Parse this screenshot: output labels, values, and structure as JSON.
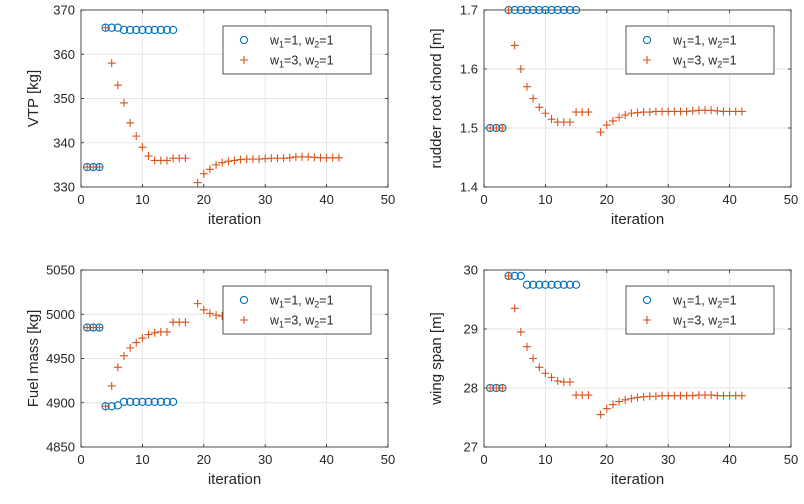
{
  "colors": {
    "series1": "#0072BD",
    "series2": "#D95319",
    "axis": "#262626",
    "grid": "#E6E6E6",
    "legend_border": "#262626"
  },
  "chart_data": [
    {
      "type": "scatter",
      "xlabel": "iteration",
      "ylabel": "VTP [kg]",
      "xlim": [
        0,
        50
      ],
      "ylim": [
        330,
        370
      ],
      "xticks": [
        0,
        10,
        20,
        30,
        40,
        50
      ],
      "yticks": [
        330,
        340,
        350,
        360,
        370
      ],
      "grid": true,
      "legend_position": "top-right",
      "series": [
        {
          "name_parts": [
            "w",
            "1",
            "=1, w",
            "2",
            "=1"
          ],
          "marker": "circle",
          "x": [
            1,
            2,
            3,
            4,
            5,
            6,
            7,
            8,
            9,
            10,
            11,
            12,
            13,
            14,
            15
          ],
          "y": [
            334.5,
            334.5,
            334.5,
            366,
            366,
            366,
            365.5,
            365.5,
            365.5,
            365.5,
            365.5,
            365.5,
            365.5,
            365.5,
            365.5
          ]
        },
        {
          "name_parts": [
            "w",
            "1",
            "=3, w",
            "2",
            "=1"
          ],
          "marker": "plus",
          "x": [
            1,
            2,
            3,
            4,
            5,
            6,
            7,
            8,
            9,
            10,
            11,
            12,
            13,
            14,
            15,
            16,
            17,
            19,
            20,
            21,
            22,
            23,
            24,
            25,
            26,
            27,
            28,
            29,
            30,
            31,
            32,
            33,
            34,
            35,
            36,
            37,
            38,
            39,
            40,
            41,
            42
          ],
          "y": [
            334.5,
            334.5,
            334.5,
            366,
            358,
            353,
            349,
            344.5,
            341.5,
            339,
            337,
            336,
            336,
            336,
            336.5,
            336.5,
            336.5,
            331,
            333,
            334,
            335,
            335.5,
            335.8,
            336,
            336.2,
            336.3,
            336.3,
            336.3,
            336.4,
            336.5,
            336.5,
            336.5,
            336.6,
            336.8,
            336.8,
            336.8,
            336.7,
            336.6,
            336.6,
            336.6,
            336.6
          ]
        }
      ]
    },
    {
      "type": "scatter",
      "xlabel": "iteration",
      "ylabel": "rudder root chord [m]",
      "xlim": [
        0,
        50
      ],
      "ylim": [
        1.4,
        1.7
      ],
      "xticks": [
        0,
        10,
        20,
        30,
        40,
        50
      ],
      "yticks": [
        1.4,
        1.5,
        1.6,
        1.7
      ],
      "grid": true,
      "legend_position": "top-right",
      "series": [
        {
          "name_parts": [
            "w",
            "1",
            "=1, w",
            "2",
            "=1"
          ],
          "marker": "circle",
          "x": [
            1,
            2,
            3,
            4,
            5,
            6,
            7,
            8,
            9,
            10,
            11,
            12,
            13,
            14,
            15
          ],
          "y": [
            1.5,
            1.5,
            1.5,
            1.7,
            1.7,
            1.7,
            1.7,
            1.7,
            1.7,
            1.7,
            1.7,
            1.7,
            1.7,
            1.7,
            1.7
          ]
        },
        {
          "name_parts": [
            "w",
            "1",
            "=3, w",
            "2",
            "=1"
          ],
          "marker": "plus",
          "x": [
            1,
            2,
            3,
            4,
            5,
            6,
            7,
            8,
            9,
            10,
            11,
            12,
            13,
            14,
            15,
            16,
            17,
            19,
            20,
            21,
            22,
            23,
            24,
            25,
            26,
            27,
            28,
            29,
            30,
            31,
            32,
            33,
            34,
            35,
            36,
            37,
            38,
            39,
            40,
            41,
            42
          ],
          "y": [
            1.5,
            1.5,
            1.5,
            1.7,
            1.64,
            1.6,
            1.57,
            1.55,
            1.535,
            1.525,
            1.515,
            1.51,
            1.51,
            1.51,
            1.527,
            1.527,
            1.527,
            1.493,
            1.505,
            1.512,
            1.518,
            1.522,
            1.525,
            1.526,
            1.527,
            1.527,
            1.528,
            1.528,
            1.528,
            1.528,
            1.528,
            1.528,
            1.529,
            1.53,
            1.53,
            1.53,
            1.529,
            1.528,
            1.528,
            1.528,
            1.528
          ]
        }
      ]
    },
    {
      "type": "scatter",
      "xlabel": "iteration",
      "ylabel": "Fuel mass [kg]",
      "xlim": [
        0,
        50
      ],
      "ylim": [
        4850,
        5050
      ],
      "xticks": [
        0,
        10,
        20,
        30,
        40,
        50
      ],
      "yticks": [
        4850,
        4900,
        4950,
        5000,
        5050
      ],
      "grid": true,
      "legend_position": "top-right",
      "series": [
        {
          "name_parts": [
            "w",
            "1",
            "=1, w",
            "2",
            "=1"
          ],
          "marker": "circle",
          "x": [
            1,
            2,
            3,
            4,
            5,
            6,
            7,
            8,
            9,
            10,
            11,
            12,
            13,
            14,
            15
          ],
          "y": [
            4985,
            4985,
            4985,
            4896,
            4896,
            4897,
            4901,
            4901,
            4901,
            4901,
            4901,
            4901,
            4901,
            4901,
            4901
          ]
        },
        {
          "name_parts": [
            "w",
            "1",
            "=3, w",
            "2",
            "=1"
          ],
          "marker": "plus",
          "x": [
            1,
            2,
            3,
            4,
            5,
            6,
            7,
            8,
            9,
            10,
            11,
            12,
            13,
            14,
            15,
            16,
            17,
            19,
            20,
            21,
            22,
            23,
            24,
            25,
            26,
            27,
            28,
            29,
            30,
            31,
            32,
            33,
            34,
            35,
            36,
            37,
            38,
            39,
            40,
            41,
            42
          ],
          "y": [
            4985,
            4985,
            4985,
            4896,
            4919,
            4940,
            4953,
            4962,
            4968,
            4973,
            4977,
            4979,
            4980,
            4980,
            4991,
            4991,
            4991,
            5012,
            5005,
            5001,
            4999,
            4998,
            4997,
            4996,
            4996,
            4996,
            4995,
            4995,
            4995,
            4995,
            4995,
            4995,
            4995,
            4994,
            4994,
            4994,
            4995,
            4995,
            4995,
            4995,
            4995
          ]
        }
      ]
    },
    {
      "type": "scatter",
      "xlabel": "iteration",
      "ylabel": "wing span [m]",
      "xlim": [
        0,
        50
      ],
      "ylim": [
        27,
        30
      ],
      "xticks": [
        0,
        10,
        20,
        30,
        40,
        50
      ],
      "yticks": [
        27,
        28,
        29,
        30
      ],
      "grid": true,
      "legend_position": "top-right",
      "series": [
        {
          "name_parts": [
            "w",
            "1",
            "=1, w",
            "2",
            "=1"
          ],
          "marker": "circle",
          "x": [
            1,
            2,
            3,
            4,
            5,
            6,
            7,
            8,
            9,
            10,
            11,
            12,
            13,
            14,
            15
          ],
          "y": [
            28,
            28,
            28,
            29.9,
            29.9,
            29.9,
            29.75,
            29.75,
            29.75,
            29.75,
            29.75,
            29.75,
            29.75,
            29.75,
            29.75
          ]
        },
        {
          "name_parts": [
            "w",
            "1",
            "=3, w",
            "2",
            "=1"
          ],
          "marker": "plus",
          "x": [
            1,
            2,
            3,
            4,
            5,
            6,
            7,
            8,
            9,
            10,
            11,
            12,
            13,
            14,
            15,
            16,
            17,
            19,
            20,
            21,
            22,
            23,
            24,
            25,
            26,
            27,
            28,
            29,
            30,
            31,
            32,
            33,
            34,
            35,
            36,
            37,
            38,
            39,
            40,
            41,
            42
          ],
          "y": [
            28,
            28,
            28,
            29.9,
            29.35,
            28.95,
            28.7,
            28.5,
            28.35,
            28.25,
            28.18,
            28.12,
            28.1,
            28.1,
            27.88,
            27.88,
            27.88,
            27.55,
            27.65,
            27.72,
            27.77,
            27.8,
            27.82,
            27.84,
            27.85,
            27.86,
            27.86,
            27.87,
            27.87,
            27.87,
            27.87,
            27.87,
            27.87,
            27.88,
            27.88,
            27.88,
            27.87,
            27.87,
            27.87,
            27.87,
            27.87
          ]
        }
      ]
    }
  ]
}
